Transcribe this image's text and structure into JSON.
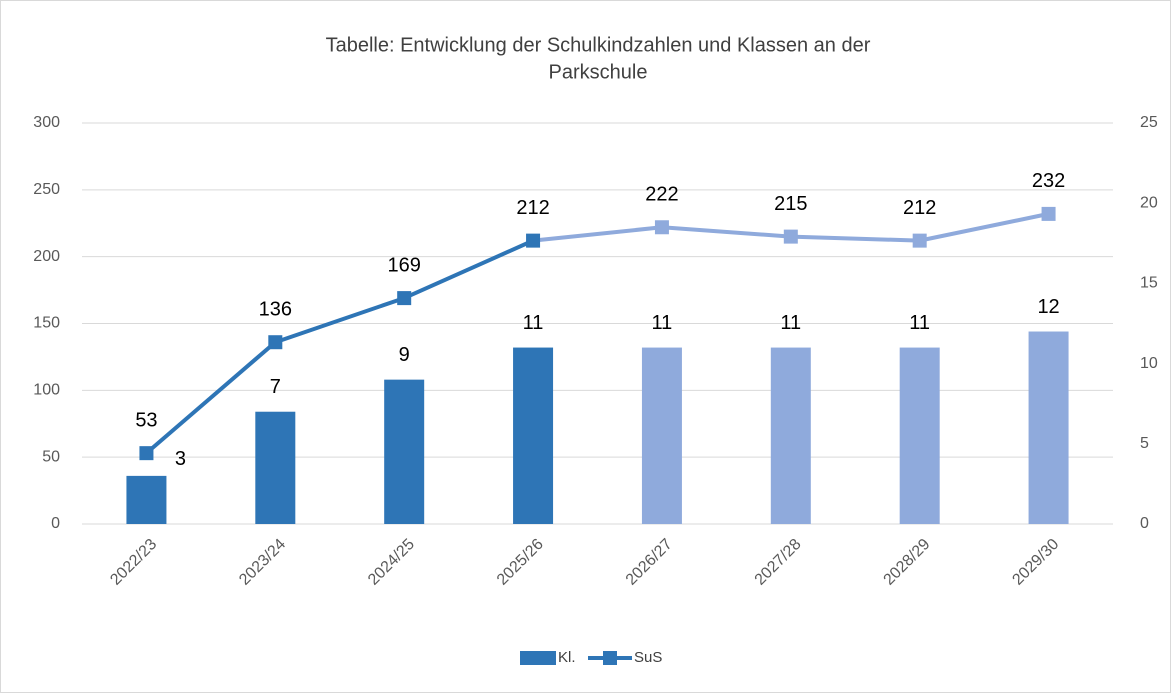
{
  "chart_data": {
    "type": "bar",
    "title": [
      "Tabelle: Entwicklung der Schulkindzahlen und Klassen an der",
      "Parkschule"
    ],
    "categories": [
      "2022/23",
      "2023/24",
      "2024/25",
      "2025/26",
      "2026/27",
      "2027/28",
      "2028/29",
      "2029/30"
    ],
    "series": [
      {
        "name": "Kl.",
        "type": "bar",
        "axis": "y2",
        "color": "#2e75b6",
        "colors": [
          "#2e75b6",
          "#2e75b6",
          "#2e75b6",
          "#2e75b6",
          "#8faadc",
          "#8faadc",
          "#8faadc",
          "#8faadc"
        ],
        "values": [
          3,
          7,
          9,
          11,
          11,
          11,
          11,
          12
        ]
      },
      {
        "name": "SuS",
        "type": "line",
        "axis": "y",
        "color": "#2e75b6",
        "colors": [
          "#2e75b6",
          "#2e75b6",
          "#2e75b6",
          "#2e75b6",
          "#8faadc",
          "#8faadc",
          "#8faadc",
          "#8faadc"
        ],
        "values": [
          53,
          136,
          169,
          212,
          222,
          215,
          212,
          232
        ]
      }
    ],
    "ylim": [
      0,
      300
    ],
    "yticks": [
      0,
      50,
      100,
      150,
      200,
      250,
      300
    ],
    "y2lim": [
      0,
      25
    ],
    "y2ticks": [
      0,
      5,
      10,
      15,
      20,
      25
    ],
    "grid": true,
    "legend": "bottom"
  }
}
